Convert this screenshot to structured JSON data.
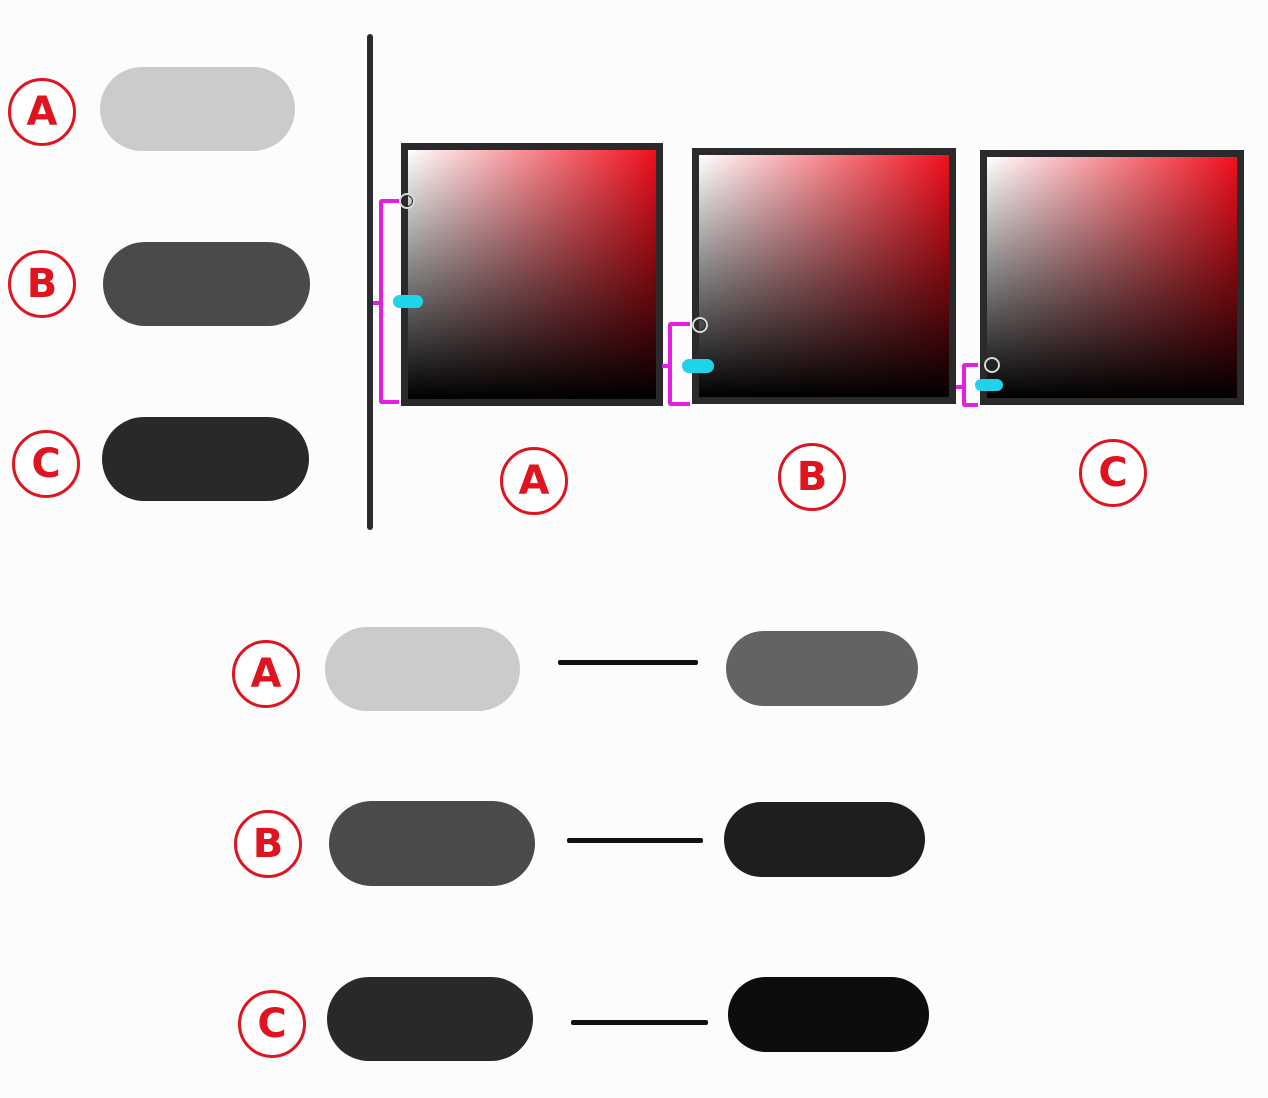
{
  "labels": {
    "a": "A",
    "b": "B",
    "c": "C"
  },
  "colors": {
    "badge_red": "#e0141f",
    "light_gray": "#cbcacc",
    "medium_gray": "#4a494c",
    "dark_gray": "#29282a",
    "medium_gray_darker": "#636265",
    "dark_gray_darker": "#1e1d1f",
    "near_black": "#0d0c0e",
    "bracket_magenta": "#e41fe4",
    "marker_cyan": "#1fd4e8",
    "gradient_hue": "#f00f1c"
  }
}
